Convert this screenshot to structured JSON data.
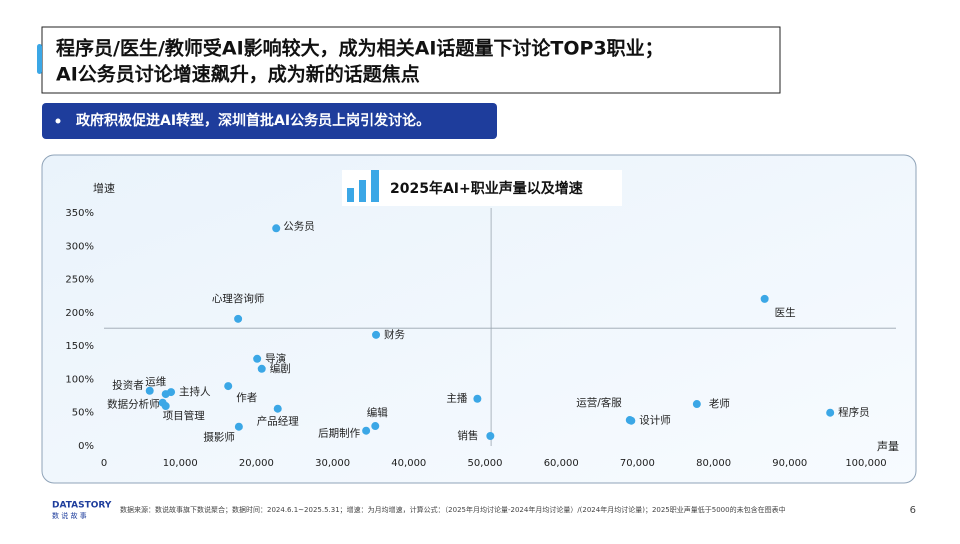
{
  "header": {
    "title_lines": [
      "程序员/医生/教师受AI影响较大，成为相关AI话题量下讨论TOP3职业；",
      "AI公务员讨论增速飙升，成为新的话题焦点"
    ],
    "bullet": "政府积极促进AI转型，深圳首批AI公务员上岗引发讨论。"
  },
  "chart_data": {
    "type": "scatter",
    "title": "2025年AI+职业声量以及增速",
    "x_label": "声量",
    "y_label": "增速",
    "color": "#3ba7e6",
    "point_labels": [
      "公务员",
      "心理咨询师",
      "财务",
      "医生",
      "导演",
      "编剧",
      "作者",
      "投资者",
      "运维",
      "主持人",
      "数据分析师",
      "项目管理",
      "产品经理",
      "摄影师",
      "编辑",
      "后期制作",
      "主播",
      "销售",
      "运营/客服",
      "设计师",
      "老师",
      "程序员"
    ],
    "x": [
      22600,
      17600,
      35700,
      86700,
      20100,
      20700,
      16300,
      6000,
      8100,
      8800,
      7700,
      8100,
      22800,
      17700,
      35600,
      34400,
      49000,
      50700,
      69000,
      69200,
      77800,
      95300
    ],
    "values": [
      327,
      191,
      167,
      221,
      131,
      116,
      90,
      83,
      78,
      81,
      65,
      60,
      56,
      29,
      30,
      23,
      71,
      15,
      39,
      38,
      63,
      50
    ],
    "xlim": [
      0,
      100000
    ],
    "xticks": [
      0,
      {
        "value": 10000,
        "label": "10,000"
      },
      {
        "value": 20000,
        "label": "20,000"
      },
      {
        "value": 30000,
        "label": "30,000"
      },
      {
        "value": 40000,
        "label": "40,000"
      },
      {
        "value": 50000,
        "label": "50,000"
      },
      {
        "value": 60000,
        "label": "60,000"
      },
      {
        "value": 70000,
        "label": "70,000"
      },
      {
        "value": 80000,
        "label": "80,000"
      },
      {
        "value": 90000,
        "label": "90,000"
      },
      {
        "value": 100000,
        "label": "100,000"
      }
    ],
    "ylim": [
      0,
      350
    ],
    "yticks": [
      {
        "value": 0,
        "label": "0%"
      },
      {
        "value": 50,
        "label": "50%"
      },
      {
        "value": 100,
        "label": "100%"
      },
      {
        "value": 150,
        "label": "150%"
      },
      {
        "value": 200,
        "label": "200%"
      },
      {
        "value": 250,
        "label": "250%"
      },
      {
        "value": 300,
        "label": "300%"
      },
      {
        "value": 350,
        "label": "350%"
      }
    ],
    "reference_lines": {
      "x": 50800,
      "y": 177
    }
  },
  "footer": {
    "logo": "DATASTORY",
    "logo_sub": "数 说 故 事",
    "source": "数据来源：数说故事旗下数说聚合；数据时间：2024.6.1~2025.5.31；增速：为月均增速，计算公式：（2025年月均讨论量-2024年月均讨论量）/(2024年月均讨论量)；2025职业声量低于5000的未包含在图表中",
    "page": "6"
  }
}
